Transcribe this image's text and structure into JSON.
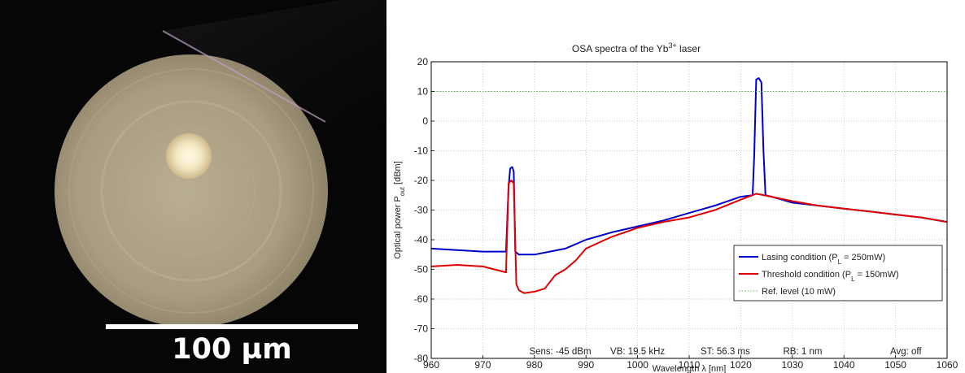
{
  "micrograph": {
    "scale_bar_label": "100 µm"
  },
  "chart_data": {
    "type": "line",
    "title": "OSA spectra of the Yb",
    "title_sup": "3+",
    "title_tail": " laser",
    "xlabel": "Wavelength λ [nm]",
    "ylabel": "Optical power P",
    "ylabel_sub": "out",
    "ylabel_tail": " [dBm]",
    "xlim": [
      960,
      1060
    ],
    "ylim": [
      -80,
      20
    ],
    "xticks": [
      960,
      970,
      980,
      990,
      1000,
      1010,
      1020,
      1030,
      1040,
      1050,
      1060
    ],
    "yticks": [
      -80,
      -70,
      -60,
      -50,
      -40,
      -30,
      -20,
      -10,
      0,
      10,
      20
    ],
    "grid": true,
    "legend_position": "bottom-right",
    "series": [
      {
        "name": "Lasing condition (P",
        "name_sub": "L",
        "name_tail": " = 250mW)",
        "color": "#0000cc",
        "x": [
          960,
          965,
          970,
          974.5,
          975,
          975.3,
          975.7,
          976,
          976.3,
          977,
          980,
          983,
          986,
          990,
          995,
          1000,
          1005,
          1010,
          1015,
          1020,
          1022.3,
          1022.6,
          1023,
          1023.5,
          1024,
          1024.4,
          1024.8,
          1026,
          1030,
          1035,
          1040,
          1045,
          1050,
          1055,
          1060
        ],
        "y": [
          -43,
          -43.5,
          -44,
          -44,
          -22,
          -16,
          -15.5,
          -17,
          -44,
          -45,
          -45,
          -44,
          -43,
          -40,
          -37.5,
          -35.5,
          -33.5,
          -31,
          -28.5,
          -25.5,
          -25,
          -12,
          14,
          14.5,
          13,
          -10,
          -25,
          -25.5,
          -27.5,
          -28.5,
          -29.5,
          -30.5,
          -31.5,
          -32.5,
          -34
        ]
      },
      {
        "name": "Threshold condition (P",
        "name_sub": "L",
        "name_tail": " = 150mW)",
        "color": "#e00000",
        "x": [
          960,
          965,
          970,
          974.5,
          975,
          975.5,
          976,
          976.5,
          977,
          978,
          980,
          982,
          984,
          986,
          988,
          990,
          995,
          1000,
          1005,
          1010,
          1015,
          1020,
          1023,
          1026,
          1030,
          1035,
          1040,
          1045,
          1050,
          1055,
          1060
        ],
        "y": [
          -49,
          -48.5,
          -49,
          -51,
          -21,
          -20,
          -21,
          -55,
          -57,
          -58,
          -57.5,
          -56.5,
          -52,
          -50,
          -47,
          -43,
          -39,
          -36,
          -34,
          -32.5,
          -30,
          -26.5,
          -24.5,
          -25.5,
          -27,
          -28.5,
          -29.5,
          -30.5,
          -31.5,
          -32.5,
          -34
        ]
      },
      {
        "name": "Ref. level (10 mW)",
        "color": "#55bb55",
        "style": "dotted",
        "x": [
          960,
          1060
        ],
        "y": [
          10,
          10
        ]
      }
    ],
    "annotations": [
      "Sens: -45 dBm",
      "VB: 19.5 kHz",
      "ST: 56.3 ms",
      "RB: 1 nm",
      "Avg: off"
    ]
  }
}
